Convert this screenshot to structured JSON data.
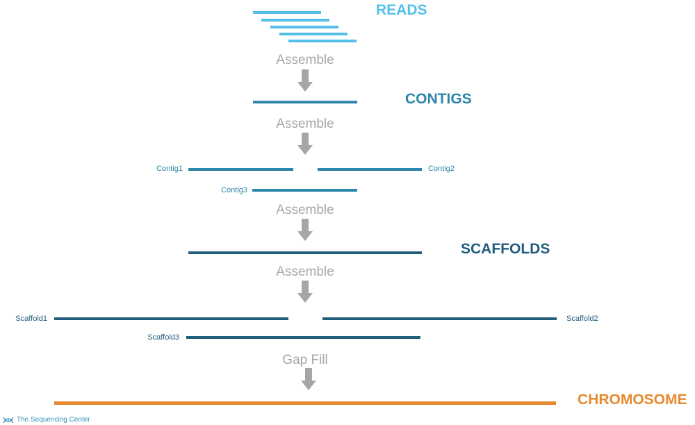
{
  "colors": {
    "reads": "#55bfe8",
    "contigs": "#2e86ab",
    "scaffolds": "#235d7c",
    "chromosome": "#e68a2e",
    "step_text": "#a6a6a6",
    "arrow": "#a6a6a6"
  },
  "stages": {
    "reads": "READS",
    "contigs": "CONTIGS",
    "scaffolds": "SCAFFOLDS",
    "chromosome": "CHROMOSOME"
  },
  "steps": [
    "Assemble",
    "Assemble",
    "Assemble",
    "Assemble",
    "Gap Fill"
  ],
  "contig_labels": [
    "Contig1",
    "Contig2",
    "Contig3"
  ],
  "scaffold_labels": [
    "Scaffold1",
    "Scaffold2",
    "Scaffold3"
  ],
  "credit": {
    "icon": "dna-helix-icon",
    "text": "The Sequencing Center"
  }
}
